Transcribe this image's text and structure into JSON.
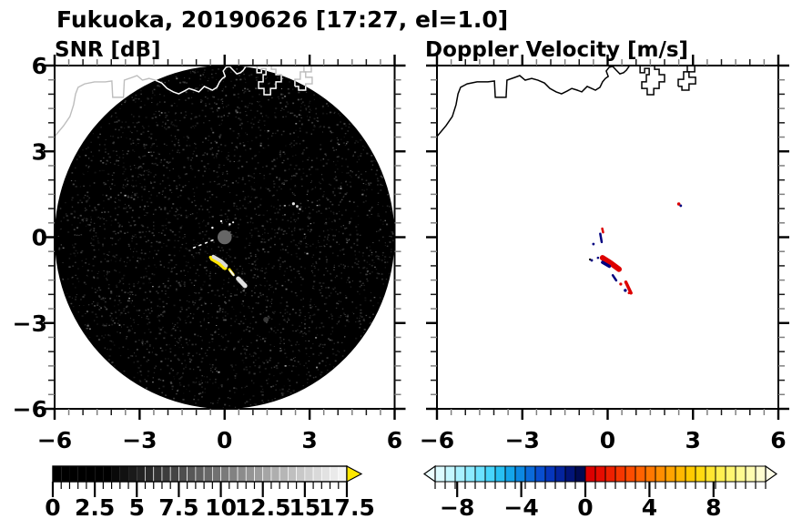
{
  "title": "Fukuoka, 20190626 [17:27, el=1.0]",
  "panels": {
    "snr": {
      "title": "SNR [dB]"
    },
    "vel": {
      "title": "Doppler Velocity [m/s]"
    }
  },
  "axis": {
    "range": [
      -6,
      6
    ],
    "major_ticks": [
      -6,
      -3,
      0,
      3,
      6
    ],
    "x_major_labels": [
      "−6",
      "−3",
      "0",
      "3",
      "6"
    ],
    "y_major_labels": [
      "6",
      "3",
      "0",
      "−3",
      "−6"
    ],
    "y_major_values": [
      6,
      3,
      0,
      -3,
      -6
    ],
    "minor_step": 0.5
  },
  "colorbar_snr": {
    "min": 0,
    "max": 17.5,
    "cells": 35,
    "cell_step": 0.5,
    "tick_values": [
      0,
      2.5,
      5,
      7.5,
      10,
      12.5,
      15,
      17.5
    ],
    "tick_labels": [
      "0",
      "2.5",
      "5",
      "7.5",
      "10",
      "12.5",
      "15",
      "17.5"
    ],
    "style": "grayscale black to white",
    "overflow_color": "#ffe800"
  },
  "colorbar_vel": {
    "cells": 33,
    "cell_step_mps": 0.625,
    "tick_values": [
      -8,
      -4,
      0,
      4,
      8
    ],
    "tick_labels": [
      "−8",
      "−4",
      "0",
      "4",
      "8"
    ],
    "cool_colors": [
      "#dcfbff",
      "#c4f7ff",
      "#a8f1ff",
      "#8cebff",
      "#6ce2ff",
      "#48d5fb",
      "#28c0f2",
      "#14a5ea",
      "#0c88e2",
      "#0a6ada",
      "#084ed0",
      "#0636bc",
      "#04249e",
      "#021478",
      "#010a52"
    ],
    "warm_colors": [
      "#dc0000",
      "#e60c00",
      "#ee2000",
      "#f63600",
      "#fc4c00",
      "#ff6200",
      "#ff7800",
      "#ff8e00",
      "#ffa400",
      "#ffb800",
      "#ffca00",
      "#ffda10",
      "#ffe630",
      "#fff050",
      "#fff670",
      "#fffa90",
      "#fffcb0",
      "#fffdd0"
    ],
    "under_color": "#ecfeff",
    "over_color": "#fffee8"
  },
  "chart_data": {
    "type": "radar_ppi_pair",
    "site": "Fukuoka",
    "date": "20190626",
    "time": "17:27",
    "elevation_deg": 1.0,
    "xlim": [
      -6,
      6
    ],
    "ylim": [
      -6,
      6
    ],
    "scan_radius": 6,
    "snr": {
      "background": "black noise-speckled scan disk (SNR near 0 dB)",
      "center_blind_disk": {
        "x": 0,
        "y": 0,
        "r": 0.25,
        "color": "#666666"
      },
      "echo_lines": [
        {
          "pts": [
            [
              -0.44,
              -0.75
            ],
            [
              -0.2,
              -0.89
            ],
            [
              0.01,
              -1.07
            ]
          ],
          "w": 5,
          "color": "#ffe400"
        },
        {
          "pts": [
            [
              -0.4,
              -0.68
            ],
            [
              -0.12,
              -0.84
            ],
            [
              0.05,
              -1.0
            ]
          ],
          "w": 4,
          "color": "#d8d8d8"
        },
        {
          "pts": [
            [
              0.17,
              -1.13
            ],
            [
              0.3,
              -1.3
            ]
          ],
          "w": 3,
          "color": "#ffe400"
        },
        {
          "pts": [
            [
              0.2,
              -1.18
            ],
            [
              0.32,
              -1.33
            ]
          ],
          "w": 2,
          "color": "#f5f5f5"
        },
        {
          "pts": [
            [
              0.48,
              -1.45
            ],
            [
              0.72,
              -1.7
            ]
          ],
          "w": 5,
          "color": "#e0e0e0"
        },
        {
          "pts": [
            [
              -1.1,
              -0.37
            ],
            [
              -0.3,
              -0.06
            ]
          ],
          "w": 1.5,
          "color": "#ffffff",
          "dash": "2 5"
        }
      ],
      "echo_dots": [
        {
          "x": -0.5,
          "y": -0.7,
          "r": 1.6,
          "color": "#ffe400"
        },
        {
          "x": -0.43,
          "y": 0.33,
          "r": 1.2,
          "color": "#ffffff"
        },
        {
          "x": -0.12,
          "y": 0.56,
          "r": 1.2,
          "color": "#ffffff"
        },
        {
          "x": 0.18,
          "y": 0.45,
          "r": 1.2,
          "color": "#ffffff"
        },
        {
          "x": 0.3,
          "y": 0.52,
          "r": 1.1,
          "color": "#e8e8e8"
        },
        {
          "x": 2.43,
          "y": 1.17,
          "r": 1.6,
          "color": "#e8e8e8"
        },
        {
          "x": 2.56,
          "y": 1.08,
          "r": 1.4,
          "color": "#cccccc"
        },
        {
          "x": 2.66,
          "y": 0.98,
          "r": 1.2,
          "color": "#bbbbbb"
        },
        {
          "x": 1.46,
          "y": -2.88,
          "r": 3.0,
          "color": "#383838"
        }
      ]
    },
    "velocity": {
      "background": "white (no echo)",
      "away_color": "#dd0000",
      "toward_color": "#000080",
      "echo_lines": [
        {
          "pts": [
            [
              -0.18,
              -0.72
            ],
            [
              0.1,
              -0.9
            ],
            [
              0.4,
              -1.12
            ]
          ],
          "w": 6,
          "color": "#dd0000"
        },
        {
          "pts": [
            [
              -0.18,
              -0.88
            ],
            [
              0.06,
              -1.02
            ]
          ],
          "w": 3.5,
          "color": "#000080"
        },
        {
          "pts": [
            [
              0.18,
              -1.33
            ],
            [
              0.3,
              -1.51
            ]
          ],
          "w": 2.5,
          "color": "#000080"
        },
        {
          "pts": [
            [
              0.64,
              -1.57
            ],
            [
              0.82,
              -1.95
            ]
          ],
          "w": 3.5,
          "color": "#dd0000"
        },
        {
          "pts": [
            [
              -0.19,
              0.3
            ],
            [
              -0.16,
              0.17
            ]
          ],
          "w": 2.5,
          "color": "#dd0000"
        },
        {
          "pts": [
            [
              -0.26,
              0.12
            ],
            [
              -0.21,
              -0.17
            ]
          ],
          "w": 2.5,
          "color": "#000080"
        }
      ],
      "echo_dots": [
        {
          "x": -0.62,
          "y": -0.78,
          "r": 1.2,
          "color": "#111111"
        },
        {
          "x": -0.34,
          "y": -0.72,
          "r": 1.3,
          "color": "#000080"
        },
        {
          "x": -0.5,
          "y": -0.24,
          "r": 1.4,
          "color": "#000080"
        },
        {
          "x": -0.56,
          "y": -0.81,
          "r": 1.4,
          "color": "#000080"
        },
        {
          "x": 0.46,
          "y": -1.64,
          "r": 1.6,
          "color": "#dd0000"
        },
        {
          "x": 0.62,
          "y": -1.86,
          "r": 1.7,
          "color": "#000080"
        },
        {
          "x": 0.75,
          "y": -1.95,
          "r": 1.4,
          "color": "#dd0000"
        },
        {
          "x": 2.5,
          "y": 1.16,
          "r": 1.8,
          "color": "#dd0000"
        },
        {
          "x": 2.57,
          "y": 1.1,
          "r": 1.4,
          "color": "#000080"
        }
      ]
    },
    "coastline": {
      "color_on_snr_disk": "#ffffff",
      "color_outside_snr_disk": "#bdbdbd",
      "color_on_velocity": "#000000",
      "polylines": [
        [
          [
            -6.0,
            3.52
          ],
          [
            -5.68,
            3.9
          ],
          [
            -5.46,
            4.22
          ],
          [
            -5.33,
            4.63
          ],
          [
            -5.26,
            5.01
          ],
          [
            -5.17,
            5.24
          ],
          [
            -4.94,
            5.36
          ],
          [
            -4.59,
            5.43
          ],
          [
            -4.21,
            5.43
          ],
          [
            -3.98,
            5.46
          ],
          [
            -3.95,
            4.89
          ],
          [
            -3.57,
            4.89
          ],
          [
            -3.54,
            5.49
          ],
          [
            -3.25,
            5.59
          ],
          [
            -3.09,
            5.65
          ],
          [
            -2.9,
            5.49
          ],
          [
            -2.67,
            5.55
          ],
          [
            -2.45,
            5.49
          ],
          [
            -2.22,
            5.39
          ],
          [
            -2.03,
            5.2
          ],
          [
            -1.81,
            5.08
          ],
          [
            -1.62,
            5.01
          ],
          [
            -1.42,
            5.11
          ],
          [
            -1.26,
            5.2
          ],
          [
            -1.07,
            5.14
          ],
          [
            -0.91,
            5.08
          ],
          [
            -0.72,
            5.27
          ],
          [
            -0.56,
            5.2
          ],
          [
            -0.43,
            5.14
          ],
          [
            -0.27,
            5.24
          ],
          [
            -0.18,
            5.43
          ],
          [
            -0.08,
            5.55
          ],
          [
            0.02,
            5.62
          ],
          [
            -0.05,
            5.81
          ],
          [
            0.05,
            5.94
          ],
          [
            0.18,
            5.97
          ],
          [
            0.3,
            5.84
          ],
          [
            0.43,
            5.71
          ],
          [
            0.56,
            5.75
          ],
          [
            0.66,
            5.84
          ],
          [
            0.75,
            5.97
          ],
          [
            0.8,
            6.05
          ]
        ],
        [
          [
            1.14,
            6.05
          ],
          [
            1.14,
            5.75
          ],
          [
            1.3,
            5.75
          ],
          [
            1.3,
            5.9
          ],
          [
            1.46,
            5.9
          ],
          [
            1.46,
            5.68
          ],
          [
            1.36,
            5.68
          ],
          [
            1.36,
            5.43
          ],
          [
            1.2,
            5.43
          ],
          [
            1.2,
            5.2
          ],
          [
            1.39,
            5.2
          ],
          [
            1.39,
            4.98
          ],
          [
            1.62,
            4.98
          ],
          [
            1.62,
            5.2
          ],
          [
            1.81,
            5.2
          ],
          [
            1.81,
            5.43
          ],
          [
            2.0,
            5.43
          ],
          [
            2.0,
            5.68
          ],
          [
            1.81,
            5.68
          ],
          [
            1.81,
            5.87
          ],
          [
            1.65,
            5.87
          ],
          [
            1.65,
            6.05
          ]
        ],
        [
          [
            2.48,
            5.27
          ],
          [
            2.48,
            5.52
          ],
          [
            2.67,
            5.52
          ],
          [
            2.67,
            5.78
          ],
          [
            2.86,
            5.78
          ],
          [
            2.86,
            5.59
          ],
          [
            3.09,
            5.59
          ],
          [
            3.09,
            5.36
          ],
          [
            2.86,
            5.36
          ],
          [
            2.86,
            5.14
          ],
          [
            2.61,
            5.14
          ],
          [
            2.61,
            5.27
          ],
          [
            2.48,
            5.27
          ]
        ],
        [
          [
            2.8,
            6.05
          ],
          [
            2.8,
            5.78
          ],
          [
            3.06,
            5.78
          ],
          [
            3.06,
            6.05
          ]
        ]
      ]
    }
  }
}
